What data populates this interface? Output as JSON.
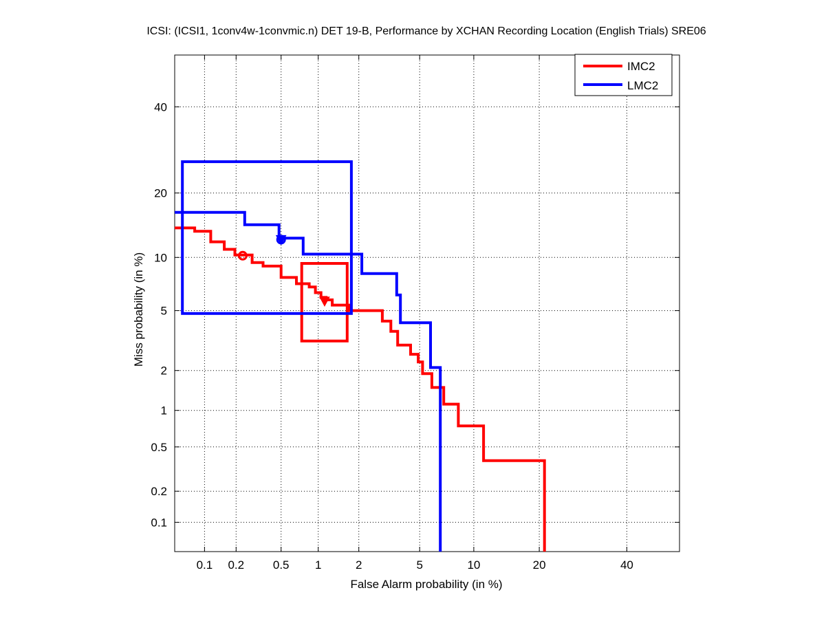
{
  "chart_data": {
    "type": "line",
    "title": "ICSI: (ICSI1, 1conv4w-1convmic.n) DET 19-B,  Performance by XCHAN Recording Location (English Trials) SRE06",
    "xlabel": "False Alarm probability (in %)",
    "ylabel": "Miss probability (in %)",
    "x_scale": "probit",
    "y_scale": "probit",
    "xlim": [
      0.05,
      54
    ],
    "ylim": [
      0.05,
      54
    ],
    "grid": true,
    "legend_position": "top-right",
    "x_ticks": [
      0.1,
      0.2,
      0.5,
      1,
      2,
      5,
      10,
      20,
      40
    ],
    "x_tick_labels": [
      "0.1",
      "0.2",
      "0.5",
      "1",
      "2",
      "5",
      "10",
      "20",
      "40"
    ],
    "y_ticks": [
      0.1,
      0.2,
      0.5,
      1,
      2,
      5,
      10,
      20,
      40
    ],
    "y_tick_labels": [
      "0.1",
      "0.2",
      "0.5",
      "1",
      "2",
      "5",
      "10",
      "20",
      "40"
    ],
    "series": [
      {
        "name": "IMC2",
        "color": "#ff0000",
        "points": [
          [
            0.05,
            14.0
          ],
          [
            0.08,
            14.0
          ],
          [
            0.08,
            13.5
          ],
          [
            0.115,
            13.5
          ],
          [
            0.115,
            12.0
          ],
          [
            0.155,
            12.0
          ],
          [
            0.155,
            11.0
          ],
          [
            0.195,
            11.0
          ],
          [
            0.195,
            10.3
          ],
          [
            0.28,
            10.3
          ],
          [
            0.28,
            9.4
          ],
          [
            0.35,
            9.4
          ],
          [
            0.35,
            9.0
          ],
          [
            0.5,
            9.0
          ],
          [
            0.5,
            7.8
          ],
          [
            0.67,
            7.8
          ],
          [
            0.67,
            7.2
          ],
          [
            0.85,
            7.2
          ],
          [
            0.85,
            6.9
          ],
          [
            0.95,
            6.9
          ],
          [
            0.95,
            6.4
          ],
          [
            1.05,
            6.4
          ],
          [
            1.05,
            6.0
          ],
          [
            1.15,
            6.0
          ],
          [
            1.15,
            5.8
          ],
          [
            1.28,
            5.8
          ],
          [
            1.28,
            5.4
          ],
          [
            1.7,
            5.4
          ],
          [
            1.7,
            5.0
          ],
          [
            2.9,
            5.0
          ],
          [
            2.9,
            4.3
          ],
          [
            3.3,
            4.3
          ],
          [
            3.3,
            3.7
          ],
          [
            3.65,
            3.7
          ],
          [
            3.65,
            3.0
          ],
          [
            4.4,
            3.0
          ],
          [
            4.4,
            2.6
          ],
          [
            4.9,
            2.6
          ],
          [
            4.9,
            2.3
          ],
          [
            5.2,
            2.3
          ],
          [
            5.2,
            1.9
          ],
          [
            5.9,
            1.9
          ],
          [
            5.9,
            1.5
          ],
          [
            6.9,
            1.5
          ],
          [
            6.9,
            1.12
          ],
          [
            8.3,
            1.12
          ],
          [
            8.3,
            0.75
          ],
          [
            11.2,
            0.75
          ],
          [
            11.2,
            0.38
          ],
          [
            21.0,
            0.38
          ],
          [
            21.0,
            0.05
          ]
        ],
        "operating_point": {
          "x": 0.23,
          "y": 10.2,
          "marker": "circle"
        },
        "min_dcf_point": {
          "x": 1.12,
          "y": 5.7,
          "marker": "triangle-down"
        },
        "confidence_box": {
          "x": [
            0.74,
            1.65
          ],
          "y": [
            3.2,
            9.3
          ]
        }
      },
      {
        "name": "LMC2",
        "color": "#0000ff",
        "points": [
          [
            0.05,
            16.5
          ],
          [
            0.24,
            16.5
          ],
          [
            0.24,
            14.5
          ],
          [
            0.48,
            14.5
          ],
          [
            0.48,
            12.5
          ],
          [
            0.76,
            12.5
          ],
          [
            0.76,
            10.4
          ],
          [
            2.1,
            10.4
          ],
          [
            2.1,
            8.2
          ],
          [
            3.6,
            8.2
          ],
          [
            3.6,
            6.2
          ],
          [
            3.8,
            6.2
          ],
          [
            3.8,
            4.2
          ],
          [
            5.8,
            4.2
          ],
          [
            5.8,
            2.1
          ],
          [
            6.6,
            2.1
          ],
          [
            6.6,
            0.05
          ]
        ],
        "operating_point": {
          "x": 0.5,
          "y": 12.3,
          "marker": "circle"
        },
        "min_dcf_point": {
          "x": 0.5,
          "y": 12.3,
          "marker": "triangle-down"
        },
        "confidence_box": {
          "x": [
            0.06,
            1.77
          ],
          "y": [
            4.8,
            26.5
          ]
        }
      }
    ]
  }
}
